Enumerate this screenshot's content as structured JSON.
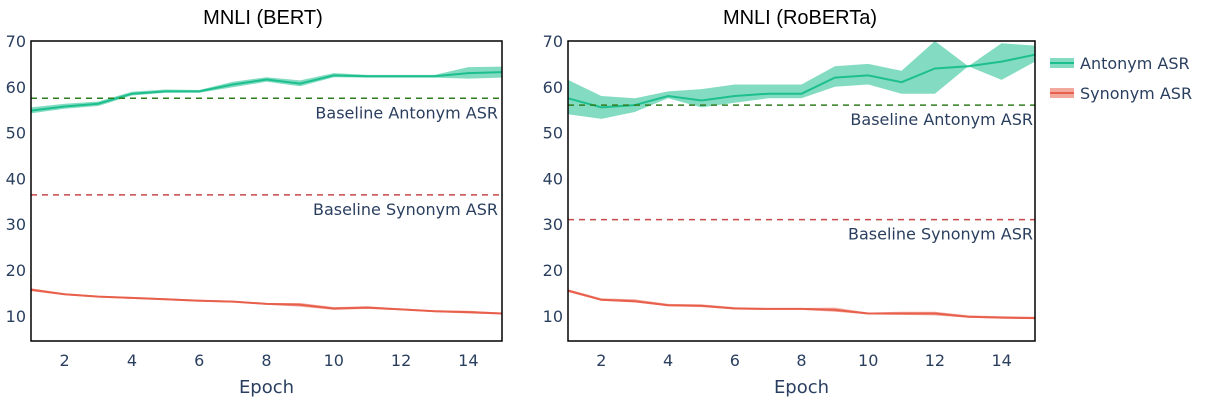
{
  "chart_data": [
    {
      "type": "line",
      "title": "MNLI (BERT)",
      "xlabel": "Epoch",
      "ylabel": "",
      "xlim": [
        1,
        15
      ],
      "ylim": [
        4.5,
        70
      ],
      "xticks": [
        2,
        4,
        6,
        8,
        10,
        12,
        14
      ],
      "yticks": [
        10,
        20,
        30,
        40,
        50,
        60,
        70
      ],
      "grid": false,
      "x": [
        1,
        2,
        3,
        4,
        5,
        6,
        7,
        8,
        9,
        10,
        11,
        12,
        13,
        14,
        15
      ],
      "series": [
        {
          "name": "Antonym ASR",
          "color": "#1dbf8e",
          "values": [
            54.8,
            55.7,
            56.3,
            58.5,
            59.0,
            59.0,
            60.5,
            61.6,
            60.7,
            62.5,
            62.3,
            62.3,
            62.3,
            63.0,
            63.2
          ],
          "lower": [
            54.2,
            55.2,
            55.8,
            58.1,
            58.7,
            58.7,
            59.9,
            61.1,
            60.1,
            62.1,
            62.0,
            62.0,
            62.0,
            61.8,
            62.0
          ],
          "upper": [
            55.5,
            56.3,
            56.8,
            58.9,
            59.4,
            59.3,
            61.1,
            62.1,
            61.4,
            63.0,
            62.6,
            62.6,
            62.6,
            64.3,
            64.4
          ]
        },
        {
          "name": "Synonym ASR",
          "color": "#e8604c",
          "values": [
            15.7,
            14.7,
            14.2,
            13.9,
            13.6,
            13.3,
            13.1,
            12.6,
            12.4,
            11.6,
            11.8,
            11.4,
            11.0,
            10.8,
            10.5
          ],
          "lower": [
            15.4,
            14.5,
            14.0,
            13.7,
            13.4,
            13.1,
            12.9,
            12.4,
            12.0,
            11.3,
            11.5,
            11.2,
            10.8,
            10.5,
            10.3
          ],
          "upper": [
            16.0,
            14.9,
            14.4,
            14.1,
            13.8,
            13.5,
            13.3,
            12.8,
            12.8,
            11.9,
            12.1,
            11.6,
            11.2,
            11.1,
            10.7
          ]
        }
      ],
      "reference_lines": [
        {
          "label": "Baseline Antonym ASR",
          "y": 57.5,
          "color": "#2e7d1e"
        },
        {
          "label": "Baseline Synonym ASR",
          "y": 36.4,
          "color": "#c6494b"
        }
      ]
    },
    {
      "type": "line",
      "title": "MNLI (RoBERTa)",
      "xlabel": "Epoch",
      "ylabel": "",
      "xlim": [
        1,
        15
      ],
      "ylim": [
        4.5,
        70
      ],
      "xticks": [
        2,
        4,
        6,
        8,
        10,
        12,
        14
      ],
      "yticks": [
        10,
        20,
        30,
        40,
        50,
        60,
        70
      ],
      "grid": false,
      "x": [
        1,
        2,
        3,
        4,
        5,
        6,
        7,
        8,
        9,
        10,
        11,
        12,
        13,
        14,
        15
      ],
      "series": [
        {
          "name": "Antonym ASR",
          "color": "#1dbf8e",
          "values": [
            57.5,
            55.5,
            56.0,
            58.0,
            57.0,
            58.0,
            58.5,
            58.5,
            62.0,
            62.5,
            61.0,
            64.0,
            64.5,
            65.5,
            67.0
          ],
          "lower": [
            54.0,
            53.0,
            54.5,
            57.5,
            55.5,
            56.5,
            57.5,
            57.5,
            60.0,
            60.5,
            58.5,
            58.5,
            64.5,
            61.5,
            65.5
          ],
          "upper": [
            61.5,
            58.0,
            57.5,
            59.0,
            59.5,
            60.5,
            60.5,
            60.5,
            64.5,
            65.0,
            63.5,
            70.0,
            64.5,
            69.5,
            69.0
          ]
        },
        {
          "name": "Synonym ASR",
          "color": "#e8604c",
          "values": [
            15.5,
            13.5,
            13.2,
            12.3,
            12.2,
            11.6,
            11.5,
            11.5,
            11.3,
            10.5,
            10.5,
            10.5,
            9.8,
            9.6,
            9.5
          ],
          "lower": [
            15.2,
            13.3,
            12.9,
            12.1,
            11.9,
            11.4,
            11.3,
            11.3,
            10.9,
            10.3,
            10.2,
            10.1,
            9.6,
            9.4,
            9.3
          ],
          "upper": [
            15.8,
            13.8,
            13.6,
            12.6,
            12.5,
            11.9,
            11.7,
            11.7,
            11.8,
            10.7,
            10.9,
            10.9,
            10.1,
            9.9,
            9.8
          ]
        }
      ],
      "reference_lines": [
        {
          "label": "Baseline Antonym ASR",
          "y": 56.0,
          "color": "#2e7d1e"
        },
        {
          "label": "Baseline Synonym ASR",
          "y": 31.0,
          "color": "#c6494b"
        }
      ]
    }
  ],
  "legend": {
    "placement": "right",
    "items": [
      {
        "label": "Antonym ASR",
        "color": "#1dbf8e"
      },
      {
        "label": "Synonym ASR",
        "color": "#e8604c"
      }
    ]
  }
}
